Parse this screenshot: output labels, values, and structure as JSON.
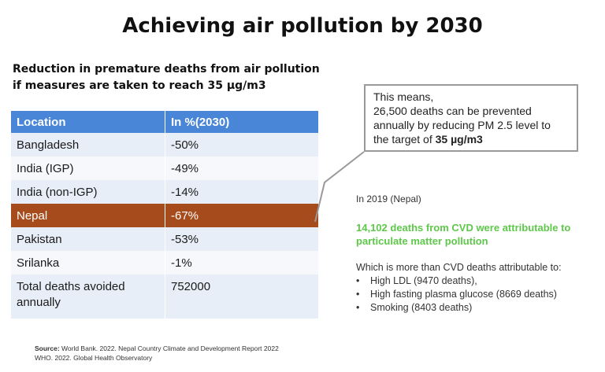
{
  "title": "Achieving air pollution by 2030",
  "subtitle": "Reduction in premature deaths from air pollution if measures are taken to reach 35 µg/m3",
  "table": {
    "headers": [
      "Location",
      "In %(2030)"
    ],
    "rows": [
      {
        "location": "Bangladesh",
        "value": "-50%"
      },
      {
        "location": "India (IGP)",
        "value": "-49%"
      },
      {
        "location": "India (non-IGP)",
        "value": "-14%"
      },
      {
        "location": "Nepal",
        "value": "-67%",
        "highlight": true
      },
      {
        "location": "Pakistan",
        "value": "-53%"
      },
      {
        "location": "Srilanka",
        "value": "-1%"
      },
      {
        "location": "Total deaths avoided annually",
        "value": "752000"
      }
    ],
    "highlight_color": "#a64b1b",
    "header_color": "#4a86d8"
  },
  "callout": {
    "line1": "This means,",
    "line2": "26,500 deaths can be prevented annually by reducing PM 2.5 level to the target of",
    "bold": "35 µg/m3"
  },
  "facts": {
    "year": "In 2019 (Nepal)",
    "highlight": "14,102 deaths from CVD were attributable to particulate matter pollution",
    "highlight_color": "#5ec84a",
    "intro": "Which is more than CVD deaths attributable to:",
    "items": [
      "High LDL (9470 deaths),",
      "High fasting plasma glucose (8669 deaths)",
      "Smoking (8403 deaths)"
    ]
  },
  "source": {
    "label": "Source:",
    "line1": "World Bank. 2022. Nepal Country Climate and Development Report 2022",
    "line2": "WHO. 2022. Global Health Observatory"
  }
}
